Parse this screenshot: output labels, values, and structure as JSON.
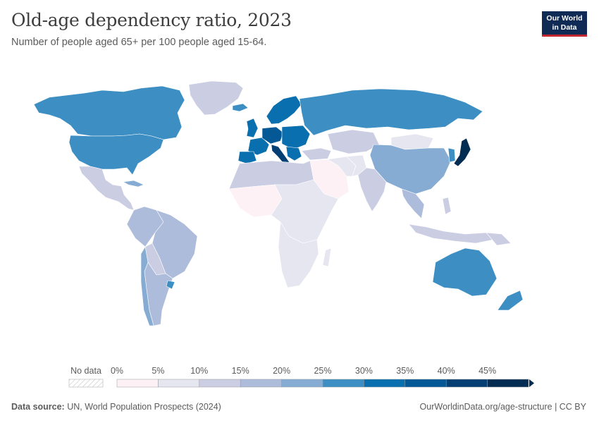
{
  "header": {
    "title": "Old-age dependency ratio, 2023",
    "subtitle": "Number of people aged 65+ per 100 people aged 15-64."
  },
  "logo": {
    "line1": "Our World",
    "line2": "in Data"
  },
  "legend": {
    "no_data_label": "No data",
    "ticks": [
      "0%",
      "5%",
      "10%",
      "15%",
      "20%",
      "25%",
      "30%",
      "35%",
      "40%",
      "45%"
    ],
    "bin_colors": [
      "#fdf1f5",
      "#e6e6f1",
      "#cbcde3",
      "#adbcdb",
      "#86acd3",
      "#3d8fc3",
      "#0a6fae",
      "#055896",
      "#033f72",
      "#022c52"
    ]
  },
  "footer": {
    "source_label": "Data source:",
    "source_text": "UN, World Population Prospects (2024)",
    "attribution": "OurWorldinData.org/age-structure | CC BY"
  }
}
